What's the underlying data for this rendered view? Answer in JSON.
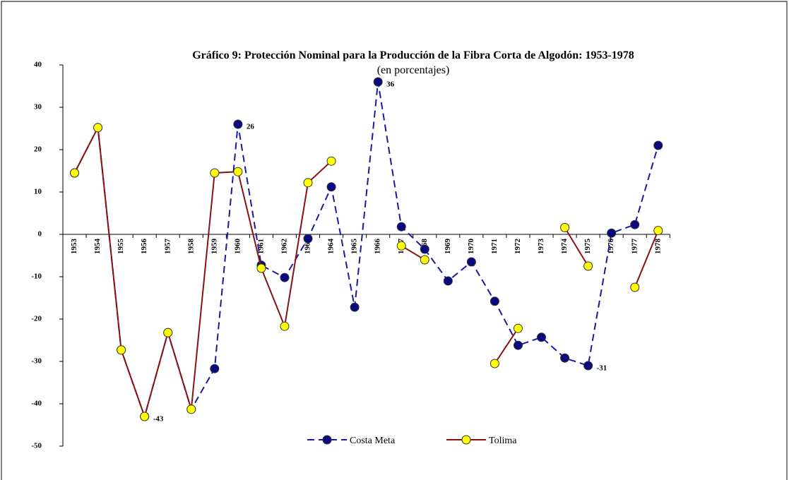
{
  "chart_data": {
    "type": "line",
    "title": "Gráfico 9:  Protección Nominal para la Producción de la Fibra Corta de Algodón:  1953-1978",
    "subtitle": "(en porcentajes)",
    "categories": [
      "1953",
      "1954",
      "1955",
      "1956",
      "1957",
      "1958",
      "1959",
      "1960",
      "1961",
      "1962",
      "1963",
      "1964",
      "1965",
      "1966",
      "1967",
      "1968",
      "1969",
      "1970",
      "1971",
      "1972",
      "1973",
      "1974",
      "1975",
      "1976",
      "1977",
      "1978"
    ],
    "series": [
      {
        "name": "Costa Meta",
        "color": "#1a1aa0",
        "marker_color": "#0a0a80",
        "dashed": true,
        "values": [
          14.5,
          25.2,
          -27.3,
          -43,
          -23.2,
          -41.3,
          -31.7,
          26,
          -7.3,
          -10.2,
          -1,
          11.2,
          -17.2,
          36,
          1.8,
          -3.5,
          -11,
          -6.5,
          -15.8,
          -26.2,
          -24.3,
          -29.2,
          -31,
          0.3,
          2.3,
          21
        ],
        "value_labels": [
          null,
          null,
          null,
          null,
          null,
          null,
          null,
          "26",
          null,
          null,
          null,
          null,
          null,
          "36",
          null,
          null,
          null,
          null,
          null,
          null,
          null,
          null,
          "-31",
          null,
          null,
          null
        ]
      },
      {
        "name": "Tolima",
        "color": "#8b1010",
        "marker_color": "#ffff00",
        "dashed": false,
        "values": [
          14.5,
          25.2,
          -27.3,
          -43,
          -23.2,
          -41.3,
          14.5,
          14.8,
          -8,
          -21.7,
          12.2,
          17.3,
          null,
          null,
          -2.7,
          -6,
          null,
          null,
          -30.5,
          -22.2,
          null,
          1.6,
          -7.5,
          null,
          -12.5,
          0.9
        ],
        "value_labels": [
          null,
          null,
          null,
          "-43",
          null,
          null,
          null,
          null,
          null,
          null,
          null,
          null,
          null,
          null,
          null,
          null,
          null,
          null,
          null,
          null,
          null,
          null,
          null,
          null,
          null,
          null
        ]
      }
    ],
    "ylim": [
      -50,
      40
    ],
    "yticks": [
      -50,
      -40,
      -30,
      -20,
      -10,
      0,
      10,
      20,
      30,
      40
    ],
    "grid": false,
    "legend": "bottom"
  }
}
